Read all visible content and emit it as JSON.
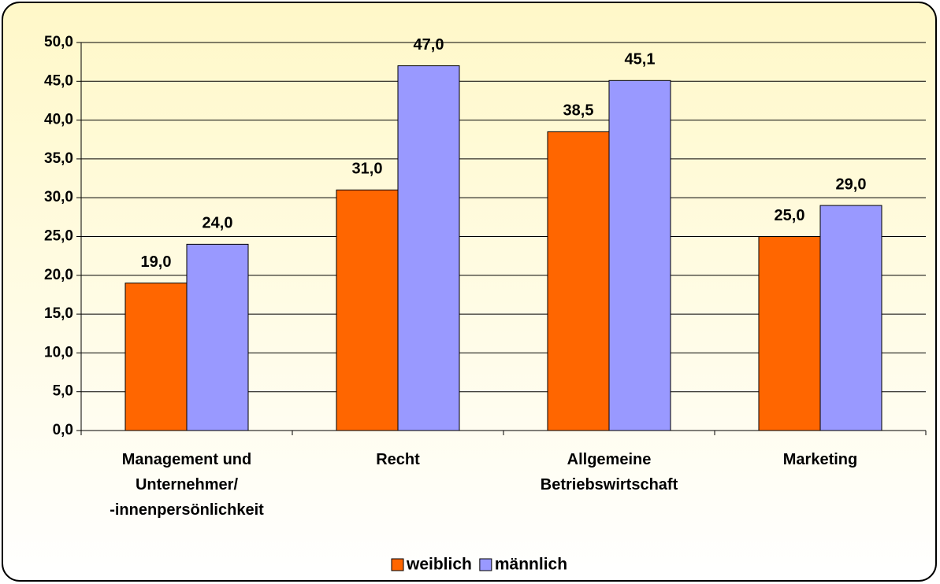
{
  "chart_data": {
    "type": "bar",
    "categories": [
      "Management und\nUnternehmer/\n-innenpersönlichkeit",
      "Recht",
      "Allgemeine\nBetriebswirtschaft",
      "Marketing"
    ],
    "series": [
      {
        "name": "weiblich",
        "color": "#ff6600",
        "values": [
          19.0,
          31.0,
          38.5,
          25.0
        ],
        "value_labels": [
          "19,0",
          "31,0",
          "38,5",
          "25,0"
        ]
      },
      {
        "name": "männlich",
        "color": "#9999ff",
        "values": [
          24.0,
          47.0,
          45.1,
          29.0
        ],
        "value_labels": [
          "24,0",
          "47,0",
          "45,1",
          "29,0"
        ]
      }
    ],
    "ylim": [
      0,
      50
    ],
    "yticks": [
      {
        "value": 0,
        "label": "0,0"
      },
      {
        "value": 5,
        "label": "5,0"
      },
      {
        "value": 10,
        "label": "10,0"
      },
      {
        "value": 15,
        "label": "15,0"
      },
      {
        "value": 20,
        "label": "20,0"
      },
      {
        "value": 25,
        "label": "25,0"
      },
      {
        "value": 30,
        "label": "30,0"
      },
      {
        "value": 35,
        "label": "35,0"
      },
      {
        "value": 40,
        "label": "40,0"
      },
      {
        "value": 45,
        "label": "45,0"
      },
      {
        "value": 50,
        "label": "50,0"
      }
    ],
    "grid": true,
    "legend": "bottom"
  }
}
